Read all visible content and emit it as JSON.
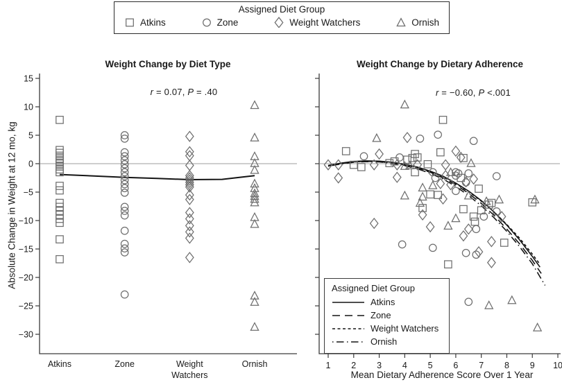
{
  "figure": {
    "top_legend": {
      "title": "Assigned Diet Group",
      "items": [
        {
          "label": "Atkins",
          "marker": "square"
        },
        {
          "label": "Zone",
          "marker": "circle"
        },
        {
          "label": "Weight Watchers",
          "marker": "diamond"
        },
        {
          "label": "Ornish",
          "marker": "triangle"
        }
      ]
    },
    "colors": {
      "marker_stroke": "#6e6e6e",
      "fit_line": "#141414",
      "zero_line": "#9c9c9c",
      "axis": "#3a3a3a",
      "text": "#1a1a1a"
    }
  },
  "chart_data": [
    {
      "type": "scatter",
      "title": "Weight Change by Diet Type",
      "annotation": {
        "r_var": "r",
        "r_rest": " = 0.07, ",
        "p_var": "P",
        "p_rest": " = .40"
      },
      "ylabel": "Absolute Change in Weight at 12 mo, kg",
      "ylim": [
        -30,
        15
      ],
      "yticks": [
        15,
        10,
        5,
        0,
        -5,
        -10,
        -15,
        -20,
        -25,
        -30
      ],
      "categories": [
        "Atkins",
        "Zone",
        "Weight Watchers",
        "Ornish"
      ],
      "series": [
        {
          "name": "Atkins",
          "marker": "square",
          "values": [
            7.7,
            2.4,
            1.9,
            1.4,
            0.9,
            0.4,
            0.0,
            -0.5,
            -1.0,
            -1.5,
            -3.9,
            -4.7,
            -6.9,
            -7.6,
            -8.3,
            -9.0,
            -9.7,
            -10.4,
            -13.3,
            -16.8
          ]
        },
        {
          "name": "Zone",
          "marker": "circle",
          "values": [
            5.0,
            4.4,
            2.0,
            1.3,
            0.6,
            -0.1,
            -0.8,
            -1.5,
            -2.2,
            -2.9,
            -3.6,
            -4.3,
            -5.1,
            -7.6,
            -8.3,
            -9.1,
            -11.8,
            -14.1,
            -14.9,
            -15.6,
            -23.0
          ]
        },
        {
          "name": "Weight Watchers",
          "marker": "diamond",
          "values": [
            4.8,
            2.1,
            1.4,
            -0.3,
            -2.1,
            -2.5,
            -2.9,
            -3.3,
            -3.7,
            -4.1,
            -5.5,
            -6.3,
            -8.6,
            -9.7,
            -10.9,
            -12.0,
            -13.1,
            -16.5
          ]
        },
        {
          "name": "Ornish",
          "marker": "triangle",
          "values": [
            10.3,
            4.6,
            1.3,
            0.1,
            -1.1,
            -3.5,
            -4.3,
            -5.2,
            -5.7,
            -6.2,
            -6.8,
            -9.4,
            -10.6,
            -23.2,
            -24.3,
            -28.7
          ]
        }
      ],
      "trend_line": {
        "x": [
          1,
          1.5,
          2,
          2.5,
          3,
          3.5,
          4
        ],
        "y": [
          -1.9,
          -2.15,
          -2.4,
          -2.6,
          -2.8,
          -2.75,
          -2.1
        ]
      }
    },
    {
      "type": "scatter",
      "title": "Weight Change by Dietary Adherence",
      "annotation": {
        "r_var": "r",
        "r_rest": " = −0.60, ",
        "p_var": "P",
        "p_rest": " <.001"
      },
      "xlabel": "Mean Dietary Adherence Score Over 1 Year",
      "xlim": [
        0.65,
        10.15
      ],
      "xticks": [
        1,
        2,
        3,
        4,
        5,
        6,
        7,
        8,
        9,
        10
      ],
      "ylim": [
        -30,
        15
      ],
      "series": [
        {
          "name": "Atkins",
          "marker": "square",
          "dash": "solid",
          "points": [
            [
              1.7,
              2.2
            ],
            [
              2.0,
              -0.2
            ],
            [
              2.3,
              -0.6
            ],
            [
              3.4,
              0.1
            ],
            [
              3.6,
              0.4
            ],
            [
              4.1,
              0.7
            ],
            [
              4.3,
              1.0
            ],
            [
              4.4,
              1.7
            ],
            [
              4.5,
              1.1
            ],
            [
              4.9,
              -0.1
            ],
            [
              4.4,
              -1.5
            ],
            [
              5.4,
              2.0
            ],
            [
              5.5,
              7.7
            ],
            [
              6.3,
              1.0
            ],
            [
              5.0,
              -5.4
            ],
            [
              5.3,
              -5.5
            ],
            [
              4.7,
              -7.8
            ],
            [
              6.2,
              -2.5
            ],
            [
              6.9,
              -4.4
            ],
            [
              6.3,
              -8.0
            ],
            [
              7.0,
              -8.2
            ],
            [
              6.7,
              -9.3
            ],
            [
              6.75,
              -10.2
            ],
            [
              7.4,
              -6.9
            ],
            [
              7.3,
              -7.2
            ],
            [
              9.0,
              -6.8
            ],
            [
              7.9,
              -13.9
            ],
            [
              5.7,
              -17.7
            ]
          ],
          "fit_curve": {
            "x": [
              1,
              1.5,
              2,
              2.5,
              3,
              3.5,
              4,
              4.5,
              5,
              5.5,
              6,
              6.5,
              7,
              7.5,
              8,
              8.5,
              9,
              9.3
            ],
            "y": [
              -0.3,
              0.1,
              0.4,
              0.5,
              0.45,
              0.25,
              -0.1,
              -0.6,
              -1.3,
              -2.2,
              -3.4,
              -4.8,
              -6.5,
              -8.5,
              -10.8,
              -13.4,
              -16.3,
              -18.2
            ]
          }
        },
        {
          "name": "Zone",
          "marker": "circle",
          "dash": "long-dash",
          "points": [
            [
              2.4,
              1.3
            ],
            [
              3.8,
              1.1
            ],
            [
              4.6,
              4.4
            ],
            [
              5.3,
              5.1
            ],
            [
              6.7,
              4.0
            ],
            [
              5.1,
              -1.5
            ],
            [
              5.2,
              -2.5
            ],
            [
              6.0,
              -1.5
            ],
            [
              6.1,
              -1.7
            ],
            [
              6.5,
              -1.7
            ],
            [
              6.0,
              -2.1
            ],
            [
              6.0,
              -4.8
            ],
            [
              6.4,
              -3.3
            ],
            [
              3.9,
              -14.2
            ],
            [
              5.1,
              -14.8
            ],
            [
              7.6,
              -2.2
            ],
            [
              7.6,
              -8.4
            ],
            [
              7.1,
              -9.3
            ],
            [
              6.8,
              -11.5
            ],
            [
              6.4,
              -15.7
            ],
            [
              6.8,
              -16.0
            ],
            [
              6.5,
              -24.3
            ]
          ],
          "fit_curve": {
            "x": [
              1,
              1.5,
              2,
              2.5,
              3,
              3.5,
              4,
              4.5,
              5,
              5.5,
              6,
              6.5,
              7,
              7.5,
              8,
              8.5,
              9,
              9.35
            ],
            "y": [
              -0.4,
              0.0,
              0.3,
              0.4,
              0.35,
              0.1,
              -0.3,
              -0.8,
              -1.5,
              -2.5,
              -3.7,
              -5.2,
              -7.0,
              -9.1,
              -11.5,
              -14.1,
              -17.0,
              -19.3
            ]
          }
        },
        {
          "name": "Weight Watchers",
          "marker": "diamond",
          "dash": "short-dash",
          "points": [
            [
              1.0,
              -0.2
            ],
            [
              1.4,
              -0.2
            ],
            [
              2.8,
              -0.2
            ],
            [
              3.0,
              1.7
            ],
            [
              3.7,
              -0.2
            ],
            [
              4.1,
              4.6
            ],
            [
              4.5,
              -0.2
            ],
            [
              1.4,
              -2.5
            ],
            [
              3.7,
              -2.4
            ],
            [
              5.6,
              -0.2
            ],
            [
              5.6,
              -2.1
            ],
            [
              6.0,
              2.2
            ],
            [
              6.2,
              1.1
            ],
            [
              5.4,
              -3.5
            ],
            [
              6.4,
              -3.2
            ],
            [
              6.7,
              -2.7
            ],
            [
              5.5,
              -6.2
            ],
            [
              5.8,
              -3.7
            ],
            [
              4.7,
              -9.0
            ],
            [
              2.8,
              -10.5
            ],
            [
              5.0,
              -11.1
            ],
            [
              6.5,
              -11.5
            ],
            [
              6.3,
              -12.7
            ],
            [
              7.8,
              -9.3
            ],
            [
              6.9,
              -15.5
            ],
            [
              7.4,
              -13.7
            ],
            [
              7.4,
              -17.4
            ]
          ],
          "fit_curve": {
            "x": [
              1,
              1.5,
              2,
              2.5,
              3,
              3.5,
              4,
              4.5,
              5,
              5.5,
              6,
              6.5,
              7,
              7.5,
              8,
              8.5,
              9,
              9.3
            ],
            "y": [
              -0.35,
              0.05,
              0.35,
              0.45,
              0.4,
              0.2,
              -0.2,
              -0.7,
              -1.4,
              -2.3,
              -3.5,
              -4.9,
              -6.6,
              -8.5,
              -10.7,
              -13.1,
              -15.9,
              -17.7
            ]
          }
        },
        {
          "name": "Ornish",
          "marker": "triangle",
          "dash": "dash-dot",
          "points": [
            [
              2.9,
              4.5
            ],
            [
              4.0,
              10.4
            ],
            [
              4.0,
              -0.4
            ],
            [
              4.2,
              -0.3
            ],
            [
              6.6,
              0.1
            ],
            [
              5.8,
              -1.5
            ],
            [
              5.1,
              -3.8
            ],
            [
              4.7,
              -4.2
            ],
            [
              4.0,
              -5.6
            ],
            [
              4.7,
              -5.8
            ],
            [
              4.6,
              -6.9
            ],
            [
              6.5,
              -5.6
            ],
            [
              7.2,
              -6.6
            ],
            [
              7.7,
              -6.3
            ],
            [
              9.1,
              -6.3
            ],
            [
              6.0,
              -9.6
            ],
            [
              5.7,
              -10.9
            ],
            [
              7.3,
              -24.9
            ],
            [
              8.2,
              -24.0
            ],
            [
              9.2,
              -28.8
            ]
          ],
          "fit_curve": {
            "x": [
              1,
              1.5,
              2,
              2.5,
              3,
              3.5,
              4,
              4.5,
              5,
              5.5,
              6,
              6.5,
              7,
              7.5,
              8,
              8.5,
              9,
              9.5
            ],
            "y": [
              -0.45,
              -0.05,
              0.25,
              0.35,
              0.3,
              0.05,
              -0.35,
              -0.9,
              -1.7,
              -2.7,
              -4.0,
              -5.6,
              -7.4,
              -9.5,
              -11.9,
              -14.6,
              -17.6,
              -21.4
            ]
          }
        }
      ],
      "inner_legend": {
        "title": "Assigned Diet Group",
        "items": [
          {
            "label": "Atkins",
            "dash": "solid"
          },
          {
            "label": "Zone",
            "dash": "long-dash"
          },
          {
            "label": "Weight Watchers",
            "dash": "short-dash"
          },
          {
            "label": "Ornish",
            "dash": "dash-dot"
          }
        ]
      }
    }
  ]
}
